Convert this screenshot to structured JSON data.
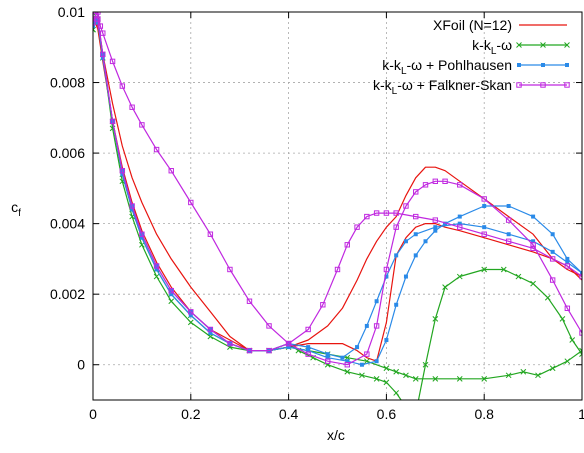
{
  "chart_data": {
    "type": "line",
    "xlabel": "x/c",
    "ylabel_main": "c",
    "ylabel_sub": "f",
    "xlim": [
      0,
      1
    ],
    "ylim": [
      -0.001,
      0.01
    ],
    "x_ticks": [
      0,
      0.2,
      0.4,
      0.6,
      0.8,
      1
    ],
    "x_tick_labels": [
      "0",
      "0.2",
      "0.4",
      "0.6",
      "0.8",
      "1"
    ],
    "y_ticks": [
      0,
      0.002,
      0.004,
      0.006,
      0.008,
      0.01
    ],
    "y_tick_labels": [
      "0",
      "0.002",
      "0.004",
      "0.006",
      "0.008",
      "0.01"
    ],
    "grid": "dashed",
    "legend_position": "top-right",
    "series": [
      {
        "name": "XFoil (N=12)",
        "color": "#e8140f",
        "marker": "none",
        "segments": [
          {
            "x": [
              0.0,
              0.005,
              0.01,
              0.02,
              0.04,
              0.06,
              0.08,
              0.1,
              0.13,
              0.16,
              0.2,
              0.24,
              0.28,
              0.32,
              0.36,
              0.4,
              0.44,
              0.48,
              0.51,
              0.54,
              0.56,
              0.58,
              0.6,
              0.62,
              0.64,
              0.66,
              0.68,
              0.7,
              0.72,
              0.75,
              0.8,
              0.85,
              0.9,
              0.94,
              0.97,
              1.0
            ],
            "y": [
              0.0095,
              0.0098,
              0.0096,
              0.0088,
              0.0074,
              0.0062,
              0.0053,
              0.0046,
              0.0037,
              0.003,
              0.0022,
              0.0015,
              0.0008,
              0.0004,
              0.0004,
              0.0005,
              0.0007,
              0.0011,
              0.0016,
              0.0024,
              0.003,
              0.0035,
              0.0039,
              0.0042,
              0.0048,
              0.0053,
              0.0056,
              0.0056,
              0.0055,
              0.0052,
              0.0047,
              0.0042,
              0.0037,
              0.003,
              0.0027,
              0.0025
            ]
          },
          {
            "x": [
              0.0,
              0.005,
              0.01,
              0.02,
              0.04,
              0.06,
              0.08,
              0.1,
              0.13,
              0.16,
              0.2,
              0.24,
              0.28,
              0.32,
              0.36,
              0.4,
              0.44,
              0.48,
              0.51,
              0.54,
              0.56,
              0.58,
              0.6,
              0.62,
              0.64,
              0.66,
              0.68,
              0.7,
              0.72,
              0.75,
              0.8,
              0.85,
              0.9,
              0.94,
              0.97,
              1.0
            ],
            "y": [
              0.0096,
              0.0097,
              0.0095,
              0.0086,
              0.0069,
              0.0056,
              0.0046,
              0.0038,
              0.0029,
              0.0022,
              0.0015,
              0.001,
              0.0007,
              0.0004,
              0.0004,
              0.0005,
              0.0006,
              0.0006,
              0.0006,
              0.0004,
              0.0002,
              0.0001,
              0.0012,
              0.0031,
              0.0036,
              0.0039,
              0.004,
              0.004,
              0.0039,
              0.0038,
              0.0036,
              0.0034,
              0.0032,
              0.003,
              0.0028,
              0.0024
            ]
          }
        ]
      },
      {
        "name": "k-k_L-ω",
        "color": "#22a620",
        "marker": "x",
        "segments": [
          {
            "x": [
              0.0,
              0.005,
              0.01,
              0.02,
              0.04,
              0.06,
              0.08,
              0.1,
              0.13,
              0.16,
              0.2,
              0.24,
              0.28,
              0.32,
              0.36,
              0.4,
              0.44,
              0.48,
              0.52,
              0.56,
              0.6,
              0.62,
              0.64,
              0.66,
              0.7,
              0.75,
              0.8,
              0.85,
              0.88,
              0.91,
              0.94,
              0.97,
              1.0
            ],
            "y": [
              0.0095,
              0.0099,
              0.0098,
              0.0088,
              0.0067,
              0.0052,
              0.0042,
              0.0034,
              0.0025,
              0.0018,
              0.0012,
              0.0008,
              0.0005,
              0.0004,
              0.0004,
              0.0005,
              0.0004,
              0.0003,
              0.0002,
              0.0001,
              -0.0001,
              -0.0002,
              -0.0003,
              -0.0004,
              -0.0004,
              -0.0004,
              -0.0004,
              -0.0003,
              -0.0002,
              -0.0003,
              -0.0001,
              0.0001,
              0.0004
            ]
          },
          {
            "x": [
              0.0,
              0.005,
              0.01,
              0.02,
              0.04,
              0.06,
              0.08,
              0.1,
              0.13,
              0.16,
              0.2,
              0.24,
              0.28,
              0.32,
              0.36,
              0.4,
              0.42,
              0.45,
              0.48,
              0.52,
              0.55,
              0.58,
              0.6,
              0.62,
              0.64,
              0.66,
              0.68,
              0.7,
              0.72,
              0.75,
              0.8,
              0.84,
              0.87,
              0.9,
              0.93,
              0.96,
              0.98,
              1.0
            ],
            "y": [
              0.0095,
              0.0098,
              0.0097,
              0.0087,
              0.0069,
              0.0054,
              0.0044,
              0.0036,
              0.0027,
              0.002,
              0.0014,
              0.0009,
              0.0006,
              0.0004,
              0.0004,
              0.0006,
              0.0004,
              0.0002,
              0.0,
              -0.0002,
              -0.0003,
              -0.0004,
              -0.0005,
              -0.0008,
              -0.0012,
              -0.0014,
              0.0,
              0.0013,
              0.0022,
              0.0025,
              0.0027,
              0.0027,
              0.0025,
              0.0023,
              0.0019,
              0.0013,
              0.0007,
              0.0003
            ]
          }
        ]
      },
      {
        "name": "k-k_L-ω + Pohlhausen",
        "color": "#2a8ae8",
        "marker": "square-filled",
        "segments": [
          {
            "x": [
              0.0,
              0.005,
              0.01,
              0.02,
              0.04,
              0.06,
              0.08,
              0.1,
              0.13,
              0.16,
              0.2,
              0.24,
              0.28,
              0.32,
              0.36,
              0.4,
              0.44,
              0.48,
              0.52,
              0.55,
              0.58,
              0.6,
              0.62,
              0.64,
              0.66,
              0.68,
              0.7,
              0.72,
              0.75,
              0.8,
              0.85,
              0.9,
              0.94,
              0.97,
              1.0
            ],
            "y": [
              0.0096,
              0.0098,
              0.0097,
              0.0088,
              0.0069,
              0.0055,
              0.0045,
              0.0037,
              0.0028,
              0.0021,
              0.0015,
              0.001,
              0.0006,
              0.0004,
              0.0004,
              0.0005,
              0.0004,
              0.0002,
              0.0001,
              0.0,
              0.0001,
              0.0007,
              0.0017,
              0.0025,
              0.0031,
              0.0035,
              0.0038,
              0.004,
              0.0042,
              0.0045,
              0.0045,
              0.0042,
              0.0037,
              0.003,
              0.0026
            ]
          },
          {
            "x": [
              0.0,
              0.005,
              0.01,
              0.02,
              0.04,
              0.06,
              0.08,
              0.1,
              0.13,
              0.16,
              0.2,
              0.24,
              0.28,
              0.32,
              0.36,
              0.4,
              0.44,
              0.48,
              0.51,
              0.54,
              0.56,
              0.58,
              0.6,
              0.62,
              0.64,
              0.66,
              0.7,
              0.75,
              0.8,
              0.85,
              0.9,
              0.94,
              0.97,
              1.0
            ],
            "y": [
              0.0096,
              0.0098,
              0.0097,
              0.0087,
              0.0069,
              0.0054,
              0.0044,
              0.0036,
              0.0027,
              0.002,
              0.0014,
              0.0009,
              0.0006,
              0.0004,
              0.0004,
              0.0006,
              0.0005,
              0.0003,
              0.0002,
              0.0005,
              0.0011,
              0.0018,
              0.0025,
              0.0031,
              0.0035,
              0.0037,
              0.0039,
              0.004,
              0.0039,
              0.0037,
              0.0035,
              0.0032,
              0.0029,
              0.0026
            ]
          }
        ]
      },
      {
        "name": "k-k_L-ω + Falkner-Skan",
        "color": "#c028e0",
        "marker": "square-open",
        "segments": [
          {
            "x": [
              0.0,
              0.005,
              0.01,
              0.015,
              0.02,
              0.04,
              0.06,
              0.08,
              0.1,
              0.13,
              0.16,
              0.2,
              0.24,
              0.28,
              0.32,
              0.36,
              0.4,
              0.44,
              0.48,
              0.52,
              0.56,
              0.58,
              0.6,
              0.62,
              0.64,
              0.66,
              0.68,
              0.7,
              0.72,
              0.75,
              0.8,
              0.85,
              0.9,
              0.94,
              0.97,
              1.0
            ],
            "y": [
              0.0097,
              0.0099,
              0.01,
              0.0096,
              0.0094,
              0.0086,
              0.0079,
              0.0073,
              0.0068,
              0.0061,
              0.0055,
              0.0046,
              0.0037,
              0.0027,
              0.0018,
              0.0011,
              0.0006,
              0.0003,
              0.0001,
              0.0,
              0.0003,
              0.0011,
              0.0027,
              0.0039,
              0.0045,
              0.0049,
              0.0051,
              0.0052,
              0.0052,
              0.0051,
              0.0047,
              0.0041,
              0.0034,
              0.0024,
              0.0016,
              0.0009
            ]
          },
          {
            "x": [
              0.0,
              0.005,
              0.01,
              0.02,
              0.04,
              0.06,
              0.08,
              0.1,
              0.13,
              0.16,
              0.2,
              0.24,
              0.28,
              0.32,
              0.36,
              0.4,
              0.44,
              0.47,
              0.5,
              0.52,
              0.54,
              0.56,
              0.58,
              0.6,
              0.62,
              0.66,
              0.7,
              0.75,
              0.8,
              0.85,
              0.9,
              0.94,
              0.97,
              1.0
            ],
            "y": [
              0.0097,
              0.0099,
              0.0098,
              0.0088,
              0.0069,
              0.0055,
              0.0045,
              0.0037,
              0.0028,
              0.0021,
              0.0015,
              0.001,
              0.0006,
              0.0004,
              0.0004,
              0.0006,
              0.001,
              0.0017,
              0.0027,
              0.0034,
              0.0039,
              0.0042,
              0.0043,
              0.0043,
              0.0043,
              0.0042,
              0.0041,
              0.0039,
              0.0037,
              0.0035,
              0.0033,
              0.003,
              0.0028,
              0.0025
            ]
          }
        ]
      }
    ]
  }
}
